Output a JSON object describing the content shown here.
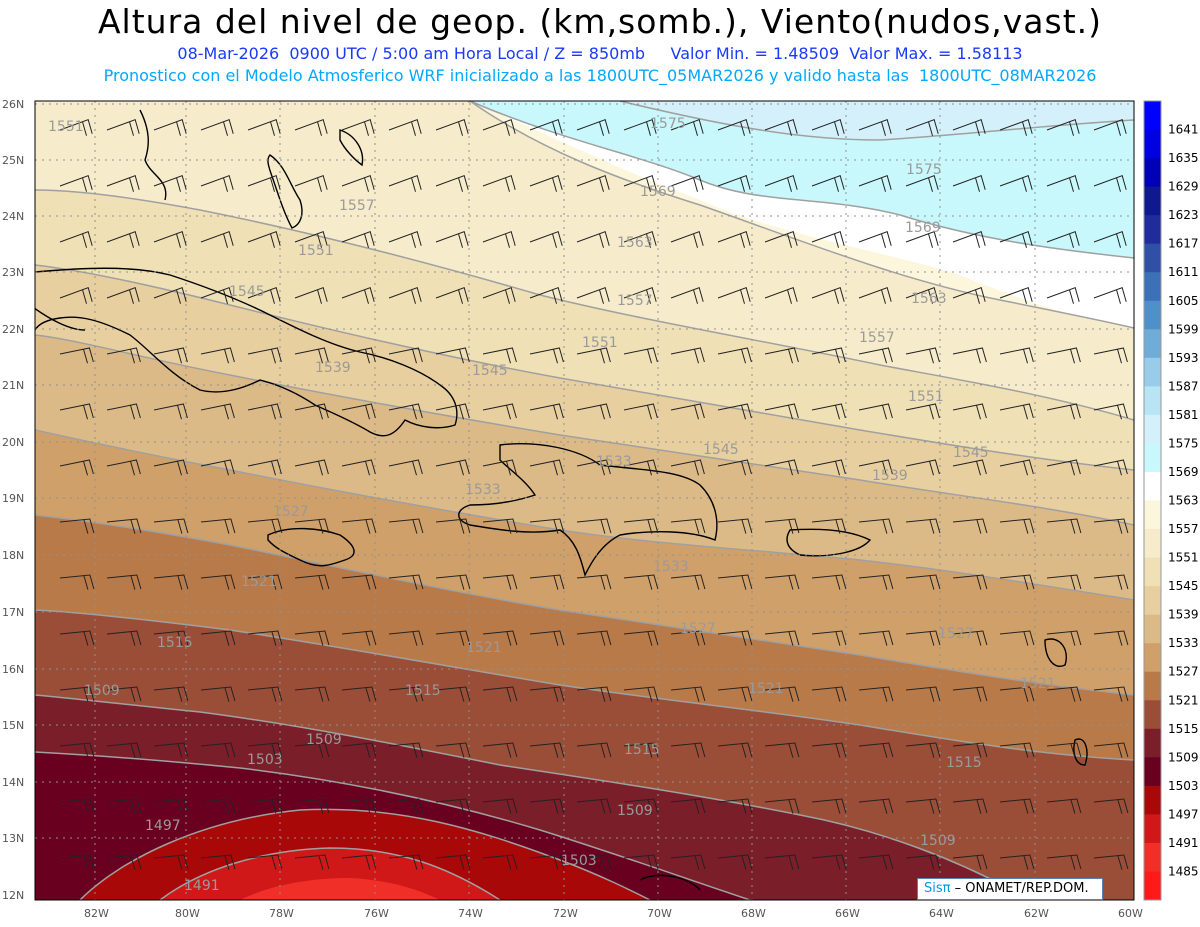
{
  "title": "Altura del nivel de geop. (km,somb.), Viento(nudos,vast.)",
  "subtitle1": "08-Mar-2026  0900 UTC / 5:00 am Hora Local / Z = 850mb     Valor Min. = 1.48509  Valor Max. = 1.58113",
  "subtitle2": "Pronostico con el Modelo Atmosferico WRF inicializado a las 1800UTC_05MAR2026 y valido hasta las  1800UTC_08MAR2026",
  "credit": {
    "brand": "Sisπ",
    "text": "– ONAMET/REP.DOM."
  },
  "lat_labels": [
    "26N",
    "25N",
    "24N",
    "23N",
    "22N",
    "21N",
    "20N",
    "19N",
    "18N",
    "17N",
    "16N",
    "15N",
    "14N",
    "13N",
    "12N"
  ],
  "lon_labels": [
    "82W",
    "80W",
    "78W",
    "76W",
    "74W",
    "72W",
    "70W",
    "68W",
    "66W",
    "64W",
    "62W",
    "60W"
  ],
  "contour_labels": [
    "1575",
    "1575",
    "1569",
    "1569",
    "1563",
    "1563",
    "1557",
    "1557",
    "1557",
    "1551",
    "1551",
    "1551",
    "1551",
    "1545",
    "1545",
    "1545",
    "1545",
    "1539",
    "1539",
    "1533",
    "1533",
    "1533",
    "1527",
    "1527",
    "1527",
    "1521",
    "1521",
    "1521",
    "1521",
    "1515",
    "1515",
    "1515",
    "1515",
    "1509",
    "1509",
    "1509",
    "1509",
    "1503",
    "1503",
    "1497",
    "1491"
  ],
  "colorbar": {
    "labels": [
      "1641",
      "1635",
      "1629",
      "1623",
      "1617",
      "1611",
      "1605",
      "1599",
      "1593",
      "1587",
      "1581",
      "1575",
      "1569",
      "1563",
      "1557",
      "1551",
      "1545",
      "1539",
      "1533",
      "1527",
      "1521",
      "1515",
      "1509",
      "1503",
      "1497",
      "1491",
      "1485"
    ],
    "colors": [
      "#0000ff",
      "#0000e0",
      "#0000b4",
      "#101890",
      "#202c9c",
      "#3050a8",
      "#3c70b8",
      "#5090c8",
      "#70acd8",
      "#98cce8",
      "#b8e4f4",
      "#d4f0fa",
      "#c8f8fc",
      "#ffffff",
      "#fbf6dc",
      "#f6eccb",
      "#efe0b6",
      "#e8cfa0",
      "#dcba88",
      "#cfa06a",
      "#b97a4a",
      "#9a4e38",
      "#7a1e2a",
      "#6a0020",
      "#a80808",
      "#d01818",
      "#f03028",
      "#ff1a1a"
    ]
  },
  "colors": {
    "title": "#000000",
    "subtitle1": "#1a39ff",
    "subtitle2": "#00a8ff",
    "contour": "#a0a0a0"
  }
}
